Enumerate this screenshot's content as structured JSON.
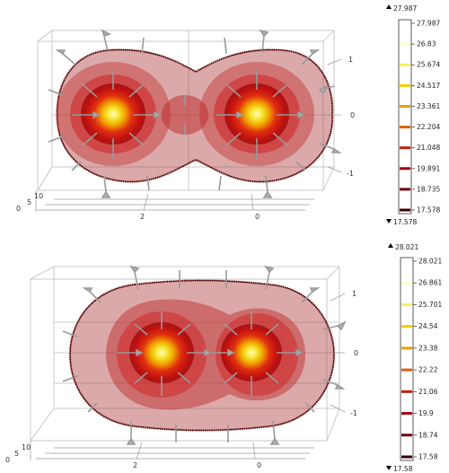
{
  "panels": [
    {
      "id": "top",
      "colorbar": {
        "max_marker": "27.987",
        "min_marker": "17.578",
        "ticks": [
          "27.987",
          "26.83",
          "25.674",
          "24.517",
          "23.361",
          "22.204",
          "21.048",
          "19.891",
          "18.735",
          "17.578"
        ],
        "tick_colors": [
          "#ffffff",
          "#ffffc8",
          "#f5f060",
          "#f0d000",
          "#eaa000",
          "#e06010",
          "#c02010",
          "#a00010",
          "#700008",
          "#3a0000"
        ]
      },
      "axis_labels": {
        "right_1": "1",
        "right_0": "0",
        "right_m1": "-1",
        "bottom_2": "2",
        "bottom_0": "0",
        "depth_0": "0",
        "depth_5": "5",
        "depth_10": "10"
      },
      "blobs": {
        "separation": "wide"
      }
    },
    {
      "id": "bottom",
      "colorbar": {
        "max_marker": "28.021",
        "min_marker": "17.58",
        "ticks": [
          "28.021",
          "26.861",
          "25.701",
          "24.54",
          "23.38",
          "22.22",
          "21.06",
          "19.9",
          "18.74",
          "17.58"
        ],
        "tick_colors": [
          "#ffffff",
          "#ffffc8",
          "#f5f060",
          "#f0d000",
          "#eaa000",
          "#e06010",
          "#c02010",
          "#a00010",
          "#700008",
          "#3a0000"
        ]
      },
      "axis_labels": {
        "right_1": "1",
        "right_0": "0",
        "right_m1": "-1",
        "bottom_2": "2",
        "bottom_0": "0",
        "depth_0": "0",
        "depth_5": "5",
        "depth_10": "10"
      },
      "blobs": {
        "separation": "close"
      }
    }
  ]
}
